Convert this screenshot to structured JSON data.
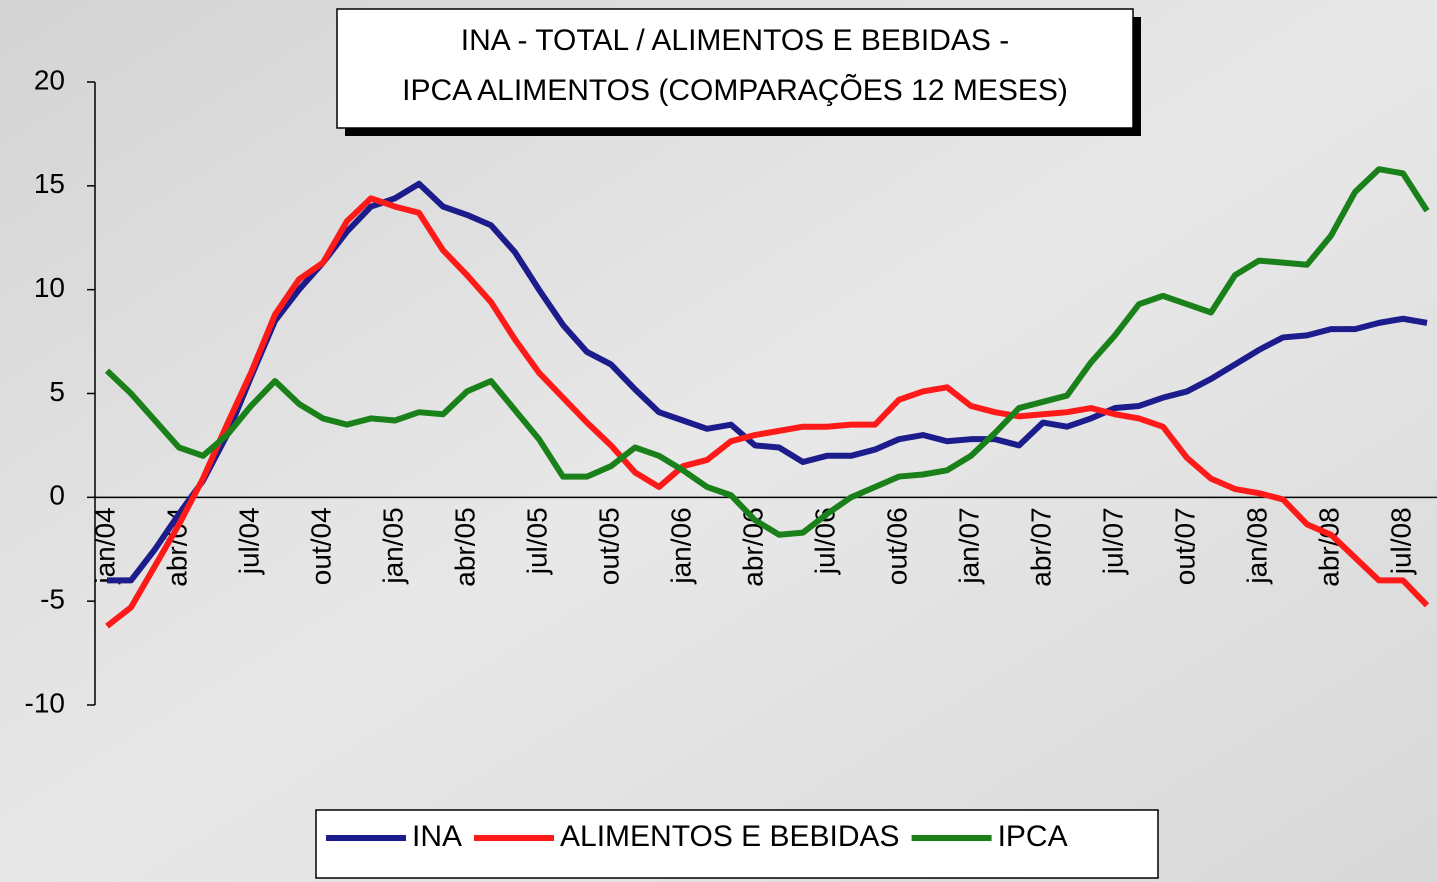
{
  "chart_data": {
    "type": "line",
    "title": [
      "INA  - TOTAL / ALIMENTOS E BEBIDAS -",
      "IPCA ALIMENTOS (COMPARAÇÕES 12 MESES)"
    ],
    "categories": [
      "jan/04",
      null,
      null,
      "abr/04",
      null,
      null,
      "jul/04",
      null,
      null,
      "out/04",
      null,
      null,
      "jan/05",
      null,
      null,
      "abr/05",
      null,
      null,
      "jul/05",
      null,
      null,
      "out/05",
      null,
      null,
      "jan/06",
      null,
      null,
      "abr/06",
      null,
      null,
      "jul/06",
      null,
      null,
      "out/06",
      null,
      null,
      "jan/07",
      null,
      null,
      "abr/07",
      null,
      null,
      "jul/07",
      null,
      null,
      "out/07",
      null,
      null,
      "jan/08",
      null,
      null,
      "abr/08",
      null,
      null,
      "jul/08",
      null
    ],
    "series": [
      {
        "name": "INA",
        "color": "#1c1c8c",
        "values": [
          -4,
          -4,
          -2.5,
          -0.8,
          0.8,
          3,
          5.8,
          8.5,
          10,
          11.3,
          12.8,
          14,
          14.4,
          15.1,
          14,
          13.6,
          13.1,
          11.8,
          10,
          8.3,
          7,
          6.4,
          5.2,
          4.1,
          3.7,
          3.3,
          3.5,
          2.5,
          2.4,
          1.7,
          2,
          2,
          2.3,
          2.8,
          3,
          2.7,
          2.8,
          2.8,
          2.5,
          3.6,
          3.4,
          3.8,
          4.3,
          4.4,
          4.8,
          5.1,
          5.7,
          6.4,
          7.1,
          7.7,
          7.8,
          8.1,
          8.1,
          8.4,
          8.6,
          8.4
        ]
      },
      {
        "name": "ALIMENTOS E BEBIDAS",
        "color": "#ff1a1a",
        "values": [
          -6.2,
          -5.3,
          -3.3,
          -1.3,
          0.9,
          3.5,
          6,
          8.8,
          10.5,
          11.3,
          13.3,
          14.4,
          14,
          13.7,
          11.9,
          10.7,
          9.4,
          7.6,
          6,
          4.8,
          3.6,
          2.5,
          1.2,
          0.5,
          1.5,
          1.8,
          2.7,
          3,
          3.2,
          3.4,
          3.4,
          3.5,
          3.5,
          4.7,
          5.1,
          5.3,
          4.4,
          4.1,
          3.9,
          4,
          4.1,
          4.3,
          4,
          3.8,
          3.4,
          1.9,
          0.9,
          0.4,
          0.2,
          -0.1,
          -1.3,
          -1.8,
          -2.9,
          -4,
          -4,
          -5.2
        ]
      },
      {
        "name": "IPCA",
        "color": "#1a801a",
        "values": [
          6.1,
          5,
          3.7,
          2.4,
          2,
          3,
          4.4,
          5.6,
          4.5,
          3.8,
          3.5,
          3.8,
          3.7,
          4.1,
          4,
          5.1,
          5.6,
          4.2,
          2.8,
          1,
          1,
          1.5,
          2.4,
          2,
          1.3,
          0.5,
          0.1,
          -1.1,
          -1.8,
          -1.7,
          -0.8,
          0,
          0.5,
          1,
          1.1,
          1.3,
          2,
          3.1,
          4.3,
          4.6,
          4.9,
          6.5,
          7.8,
          9.3,
          9.7,
          9.3,
          8.9,
          10.7,
          11.4,
          11.3,
          11.2,
          12.6,
          14.7,
          15.8,
          15.6,
          13.8
        ]
      }
    ],
    "ylim": [
      -10,
      20
    ],
    "yticks": [
      -10,
      -5,
      0,
      5,
      10,
      15,
      20
    ],
    "grid": false,
    "legend": "bottom"
  }
}
